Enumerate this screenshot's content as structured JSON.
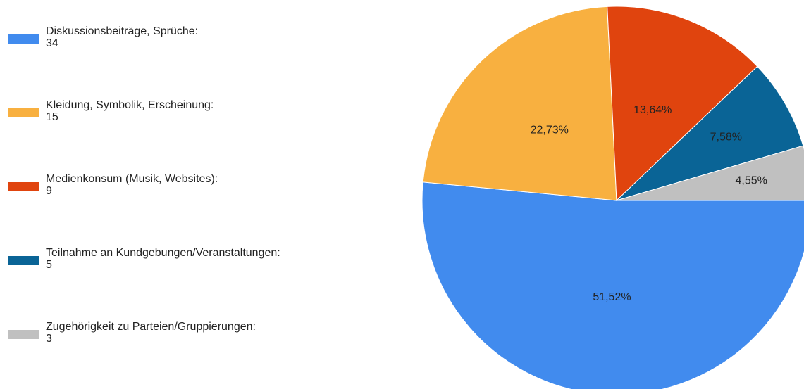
{
  "chart_data": {
    "type": "pie",
    "categories": [
      "Diskussionsbeiträge, Sprüche:",
      "Kleidung, Symbolik, Erscheinung:",
      "Medienkonsum (Musik, Websites):",
      "Teilnahme an Kundgebungen/Veranstaltungen:",
      "Zugehörigkeit zu Parteien/Gruppierungen:"
    ],
    "counts": [
      34,
      15,
      9,
      5,
      3
    ],
    "values": [
      51.52,
      22.73,
      13.64,
      7.58,
      4.55
    ],
    "value_labels": [
      "51,52%",
      "22,73%",
      "13,64%",
      "7,58%",
      "4,55%"
    ],
    "colors": [
      "#418bee",
      "#f8b040",
      "#e0440e",
      "#0a6496",
      "#c0c0c0"
    ],
    "legend": "left"
  }
}
